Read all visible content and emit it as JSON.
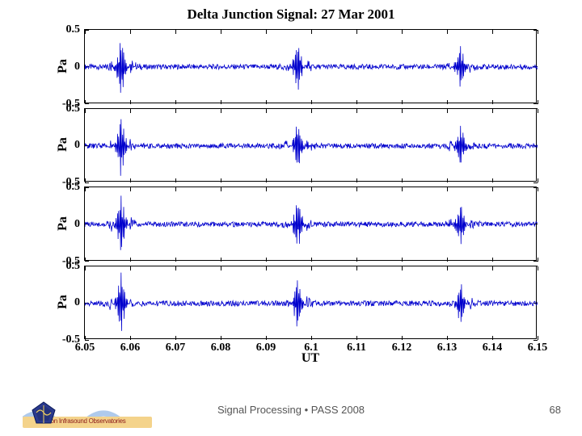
{
  "title": "Delta Junction Signal: 27 Mar 2001",
  "title_fontsize": 17,
  "background_color": "#ffffff",
  "axis_line_color": "#000000",
  "tick_font_size": 14,
  "label_font_size": 16,
  "xlabel": "UT",
  "ylabel": "Pa",
  "xlim": [
    6.05,
    6.15
  ],
  "ylim": [
    -0.5,
    0.5
  ],
  "xticks": [
    6.05,
    6.06,
    6.07,
    6.08,
    6.09,
    6.1,
    6.11,
    6.12,
    6.13,
    6.14,
    6.15
  ],
  "xtick_labels": [
    "6.05",
    "6.06",
    "6.07",
    "6.08",
    "6.09",
    "6.1",
    "6.11",
    "6.12",
    "6.13",
    "6.14",
    "6.15"
  ],
  "yticks": [
    -0.5,
    0,
    0.5
  ],
  "ytick_labels": [
    "-0.5",
    "0",
    "0.5"
  ],
  "line_color": "#0000cd",
  "line_width": 0.8,
  "noise_amp": 0.035,
  "bursts": [
    {
      "x": 6.058,
      "amp": 0.42,
      "width": 0.002
    },
    {
      "x": 6.097,
      "amp": 0.36,
      "width": 0.002
    },
    {
      "x": 6.133,
      "amp": 0.3,
      "width": 0.002
    }
  ],
  "panels": 4,
  "panel_seed_offsets": [
    0,
    31,
    62,
    93
  ],
  "footer": {
    "text": "Signal Processing • PASS 2008",
    "page": "68",
    "fontsize": 13
  },
  "logo": {
    "bar_bg": "#f4d38b",
    "bar_text": "ilson Infrasound Observatories",
    "bar_text_color": "#8b1a1a",
    "badge_fill": "#2b3a8f",
    "badge_accent": "#f0d060",
    "wave_color": "#9bbde6"
  }
}
